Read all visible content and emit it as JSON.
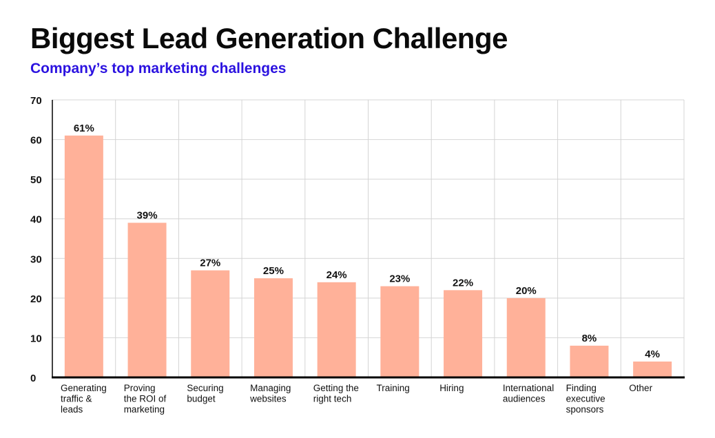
{
  "title": "Biggest Lead Generation Challenge",
  "subtitle": "Company’s top marketing challenges",
  "chart_data": {
    "type": "bar",
    "title": "Biggest Lead Generation Challenge",
    "subtitle": "Company’s top marketing challenges",
    "categories": [
      [
        "Generating",
        "traffic &",
        "leads"
      ],
      [
        "Proving",
        "the ROI of",
        "marketing"
      ],
      [
        "Securing",
        "budget"
      ],
      [
        "Managing",
        "websites"
      ],
      [
        "Getting the",
        "right tech"
      ],
      [
        "Training"
      ],
      [
        "Hiring"
      ],
      [
        "International",
        "audiences"
      ],
      [
        "Finding",
        "executive",
        "sponsors"
      ],
      [
        "Other"
      ]
    ],
    "values": [
      61,
      39,
      27,
      25,
      24,
      23,
      22,
      20,
      8,
      4
    ],
    "data_labels": [
      "61%",
      "39%",
      "27%",
      "25%",
      "24%",
      "23%",
      "22%",
      "20%",
      "8%",
      "4%"
    ],
    "y_ticks": [
      0,
      10,
      20,
      30,
      40,
      50,
      60,
      70
    ],
    "ylim": [
      0,
      70
    ],
    "xlabel": "",
    "ylabel": "",
    "grid": true,
    "bar_color": "#ffb199",
    "grid_color": "#d4d4d4",
    "axis_color": "#000000"
  }
}
